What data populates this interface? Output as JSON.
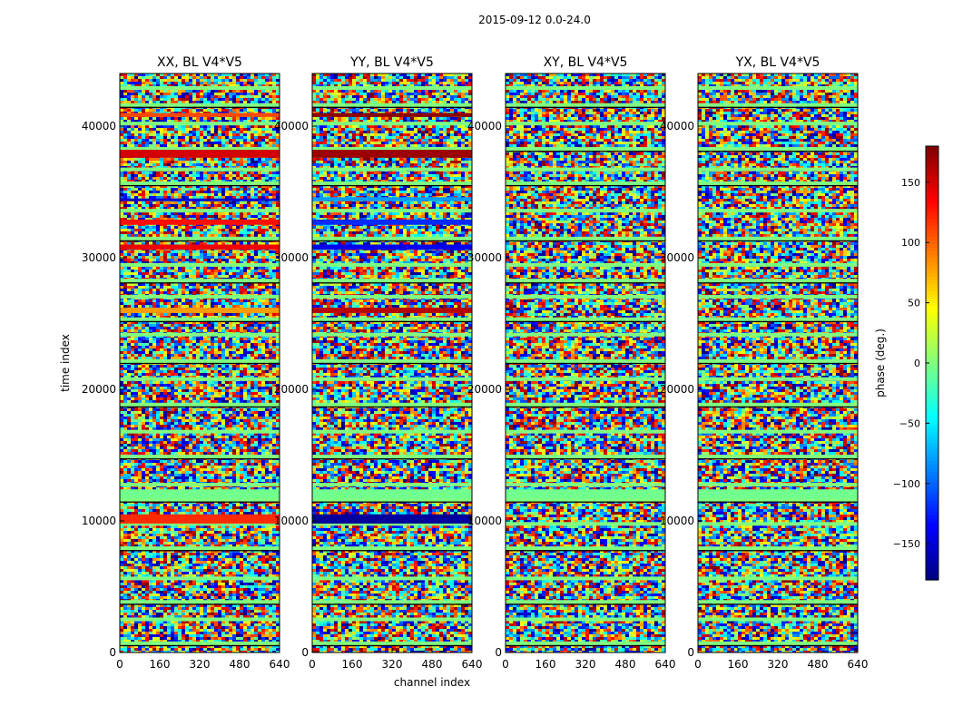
{
  "figure_title": "2015-09-12 0.0-24.0",
  "chart_data": {
    "type": "heatmap",
    "suptitle": "2015-09-12 0.0-24.0",
    "xlabel": "channel index",
    "ylabel": "time index",
    "xlim": [
      0,
      640
    ],
    "ylim": [
      0,
      44000
    ],
    "x_ticks": [
      0,
      160,
      320,
      480,
      640
    ],
    "y_ticks": [
      0,
      10000,
      20000,
      30000,
      40000
    ],
    "panels": [
      {
        "title": "XX, BL V4*V5",
        "bands": [
          {
            "t_start": 9800,
            "t_end": 10500,
            "phase": 120
          },
          {
            "t_start": 25800,
            "t_end": 26200,
            "phase": 80
          },
          {
            "t_start": 30600,
            "t_end": 31000,
            "phase": 140
          },
          {
            "t_start": 32500,
            "t_end": 32900,
            "phase": 130
          },
          {
            "t_start": 34300,
            "t_end": 34500,
            "phase": -150
          },
          {
            "t_start": 37600,
            "t_end": 38200,
            "phase": 150
          },
          {
            "t_start": 40700,
            "t_end": 41000,
            "phase": 110
          }
        ]
      },
      {
        "title": "YY, BL V4*V5",
        "bands": [
          {
            "t_start": 9800,
            "t_end": 10500,
            "phase": -170
          },
          {
            "t_start": 25800,
            "t_end": 26200,
            "phase": 160
          },
          {
            "t_start": 30600,
            "t_end": 31000,
            "phase": -140
          },
          {
            "t_start": 32500,
            "t_end": 32900,
            "phase": -120
          },
          {
            "t_start": 34300,
            "t_end": 34600,
            "phase": -80
          },
          {
            "t_start": 37600,
            "t_end": 38200,
            "phase": 170
          },
          {
            "t_start": 40700,
            "t_end": 41000,
            "phase": 175
          }
        ]
      },
      {
        "title": "XY, BL V4*V5",
        "bands": []
      },
      {
        "title": "YX, BL V4*V5",
        "bands": []
      }
    ],
    "colorbar": {
      "label": "phase (deg.)",
      "range": [
        -180,
        180
      ],
      "ticks": [
        150,
        100,
        50,
        0,
        -50,
        -100,
        -150
      ],
      "tick_labels": [
        "150",
        "100",
        "50",
        "0",
        "−50",
        "−100",
        "−150"
      ],
      "colormap": "jet",
      "colors": [
        "#00007f",
        "#0000ff",
        "#007fff",
        "#00ffff",
        "#7fff7f",
        "#ffff00",
        "#ff7f00",
        "#ff0000",
        "#7f0000"
      ]
    },
    "grid": false
  }
}
